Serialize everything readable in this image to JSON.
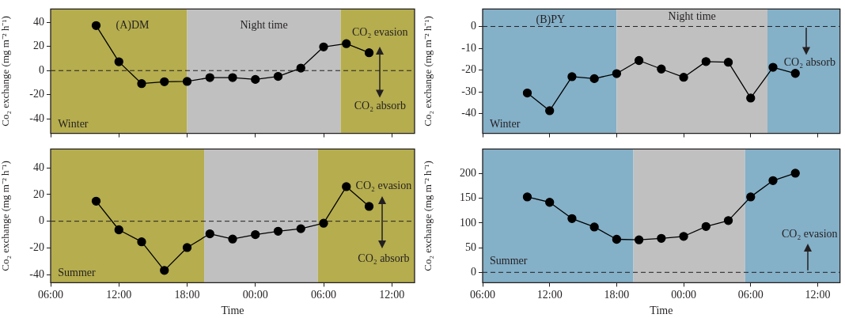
{
  "chart_data": [
    {
      "type": "line",
      "title": "(A)DM",
      "ylabel": "Co₂ exchange (mg m⁻² h⁻¹)",
      "annotations": [
        "Winter",
        "CO₂ evasion",
        "CO₂ absorb"
      ],
      "x": [
        "2000-01-01T10:00",
        "2000-01-01T12:00",
        "2000-01-01T14:00",
        "2000-01-01T16:00",
        "2000-01-01T18:00",
        "2000-01-01T20:00",
        "2000-01-01T22:00",
        "2000-01-02T00:00",
        "2000-01-02T02:00",
        "2000-01-02T04:00",
        "2000-01-02T06:00",
        "2000-01-02T08:00",
        "2000-01-02T10:00"
      ],
      "values": [
        37.3,
        7.3,
        -10.8,
        -9.2,
        -9,
        -5.8,
        -5.8,
        -7.3,
        -4.8,
        2.1,
        19.6,
        22.3,
        14.8
      ],
      "color": "#000000",
      "marker": "circle",
      "line_style": "solid",
      "xlim": [
        "2000-01-01T06:00",
        "2000-01-02T14:00"
      ],
      "xticks": [
        {
          "value": "2000-01-01T06:00",
          "label": null
        },
        {
          "value": "2000-01-01T12:00",
          "label": null
        },
        {
          "value": "2000-01-01T18:00",
          "label": null
        },
        {
          "value": "2000-01-02T00:00",
          "label": null
        },
        {
          "value": "2000-01-02T06:00",
          "label": null
        },
        {
          "value": "2000-01-02T12:00",
          "label": null
        }
      ],
      "ylim": [
        -52,
        51
      ],
      "yticks": [
        -40,
        -20,
        0,
        20,
        40
      ],
      "tick_labels": "y",
      "ref_lines": [
        {
          "axis": "y",
          "value": 0,
          "line_style": "dashed"
        }
      ],
      "bands": [
        {
          "axis": "x",
          "from": "2000-01-01T06:00",
          "to": "2000-01-01T18:00",
          "color": "#b5ad4e"
        },
        {
          "axis": "x",
          "from": "2000-01-01T18:00",
          "to": "2000-01-02T07:30",
          "label": "Night time",
          "color": "#c0c0c0"
        },
        {
          "axis": "x",
          "from": "2000-01-02T07:30",
          "to": "2000-01-02T14:00",
          "color": "#b5ad4e"
        }
      ]
    },
    {
      "type": "line",
      "xlabel": "Time",
      "ylabel": "Co₂ exchange (mg m⁻² h⁻¹)",
      "annotations": [
        "Summer",
        "CO₂ evasion",
        "CO₂ absorb"
      ],
      "x": [
        "2000-01-01T10:00",
        "2000-01-01T12:00",
        "2000-01-01T14:00",
        "2000-01-01T16:00",
        "2000-01-01T18:00",
        "2000-01-01T20:00",
        "2000-01-01T22:00",
        "2000-01-02T00:00",
        "2000-01-02T02:00",
        "2000-01-02T04:00",
        "2000-01-02T06:00",
        "2000-01-02T08:00",
        "2000-01-02T10:00"
      ],
      "values": [
        15,
        -6.4,
        -15.4,
        -36.8,
        -19.7,
        -9.4,
        -13.3,
        -10,
        -7.5,
        -5.6,
        -1.5,
        25.9,
        11.1
      ],
      "color": "#000000",
      "marker": "circle",
      "line_style": "solid",
      "xlim": [
        "2000-01-01T06:00",
        "2000-01-02T14:00"
      ],
      "xticks": [
        {
          "value": "2000-01-01T06:00",
          "label": "06:00"
        },
        {
          "value": "2000-01-01T12:00",
          "label": "12:00"
        },
        {
          "value": "2000-01-01T18:00",
          "label": "18:00"
        },
        {
          "value": "2000-01-02T00:00",
          "label": "00:00"
        },
        {
          "value": "2000-01-02T06:00",
          "label": "06:00"
        },
        {
          "value": "2000-01-02T12:00",
          "label": "12:00"
        }
      ],
      "ylim": [
        -46,
        54
      ],
      "yticks": [
        -40,
        -20,
        0,
        20,
        40
      ],
      "ref_lines": [
        {
          "axis": "y",
          "value": 0,
          "line_style": "dashed"
        }
      ],
      "bands": [
        {
          "axis": "x",
          "from": "2000-01-01T06:00",
          "to": "2000-01-01T19:30",
          "color": "#b5ad4e"
        },
        {
          "axis": "x",
          "from": "2000-01-01T19:30",
          "to": "2000-01-02T05:30",
          "color": "#c0c0c0"
        },
        {
          "axis": "x",
          "from": "2000-01-02T05:30",
          "to": "2000-01-02T14:00",
          "color": "#b5ad4e"
        }
      ]
    },
    {
      "type": "line",
      "title": "(B)PY",
      "ylabel": "Co₂ exchange (mg m⁻² h⁻¹)",
      "annotations": [
        "Winter",
        "CO₂ absorb"
      ],
      "x": [
        "2000-01-01T10:00",
        "2000-01-01T12:00",
        "2000-01-01T14:00",
        "2000-01-01T16:00",
        "2000-01-01T18:00",
        "2000-01-01T20:00",
        "2000-01-01T22:00",
        "2000-01-02T00:00",
        "2000-01-02T02:00",
        "2000-01-02T04:00",
        "2000-01-02T06:00",
        "2000-01-02T08:00",
        "2000-01-02T10:00"
      ],
      "values": [
        -30.5,
        -38.6,
        -23,
        -23.9,
        -21.6,
        -15.6,
        -19.5,
        -23.3,
        -16.1,
        -16.4,
        -32.8,
        -18.7,
        -21.5
      ],
      "color": "#000000",
      "marker": "circle",
      "line_style": "solid",
      "xlim": [
        "2000-01-01T06:00",
        "2000-01-02T14:00"
      ],
      "xticks": [
        {
          "value": "2000-01-01T06:00",
          "label": null
        },
        {
          "value": "2000-01-01T12:00",
          "label": null
        },
        {
          "value": "2000-01-01T18:00",
          "label": null
        },
        {
          "value": "2000-01-02T00:00",
          "label": null
        },
        {
          "value": "2000-01-02T06:00",
          "label": null
        },
        {
          "value": "2000-01-02T12:00",
          "label": null
        }
      ],
      "ylim": [
        -49,
        8
      ],
      "yticks": [
        -40,
        -30,
        -20,
        -10,
        0
      ],
      "tick_labels": "y",
      "ref_lines": [
        {
          "axis": "y",
          "value": 0,
          "line_style": "dashed"
        }
      ],
      "bands": [
        {
          "axis": "x",
          "from": "2000-01-01T06:00",
          "to": "2000-01-01T18:00",
          "color": "#84b0c8"
        },
        {
          "axis": "x",
          "from": "2000-01-01T18:00",
          "to": "2000-01-02T07:30",
          "label": "Night time",
          "color": "#c0c0c0"
        },
        {
          "axis": "x",
          "from": "2000-01-02T07:30",
          "to": "2000-01-02T14:00",
          "color": "#84b0c8"
        }
      ]
    },
    {
      "type": "line",
      "xlabel": "Time",
      "ylabel": "Co₂ exchange (mg m⁻² h⁻¹)",
      "annotations": [
        "Summer",
        "CO₂ evasion"
      ],
      "x": [
        "2000-01-01T10:00",
        "2000-01-01T12:00",
        "2000-01-01T14:00",
        "2000-01-01T16:00",
        "2000-01-01T18:00",
        "2000-01-01T20:00",
        "2000-01-01T22:00",
        "2000-01-02T00:00",
        "2000-01-02T02:00",
        "2000-01-02T04:00",
        "2000-01-02T06:00",
        "2000-01-02T08:00",
        "2000-01-02T10:00"
      ],
      "values": [
        153,
        142,
        109,
        92,
        67,
        66,
        69,
        73,
        93,
        105,
        153,
        186,
        201
      ],
      "color": "#000000",
      "marker": "circle",
      "line_style": "solid",
      "xlim": [
        "2000-01-01T06:00",
        "2000-01-02T14:00"
      ],
      "xticks": [
        {
          "value": "2000-01-01T06:00",
          "label": "06:00"
        },
        {
          "value": "2000-01-01T12:00",
          "label": "12:00"
        },
        {
          "value": "2000-01-01T18:00",
          "label": "18:00"
        },
        {
          "value": "2000-01-02T00:00",
          "label": "00:00"
        },
        {
          "value": "2000-01-02T06:00",
          "label": "06:00"
        },
        {
          "value": "2000-01-02T12:00",
          "label": "12:00"
        }
      ],
      "ylim": [
        -21,
        250
      ],
      "yticks": [
        0,
        50,
        100,
        150,
        200
      ],
      "ref_lines": [
        {
          "axis": "y",
          "value": 0,
          "line_style": "dashed"
        }
      ],
      "bands": [
        {
          "axis": "x",
          "from": "2000-01-01T06:00",
          "to": "2000-01-01T19:30",
          "color": "#84b0c8"
        },
        {
          "axis": "x",
          "from": "2000-01-01T19:30",
          "to": "2000-01-02T05:30",
          "color": "#c0c0c0"
        },
        {
          "axis": "x",
          "from": "2000-01-02T05:30",
          "to": "2000-01-02T14:00",
          "color": "#84b0c8"
        }
      ]
    }
  ]
}
